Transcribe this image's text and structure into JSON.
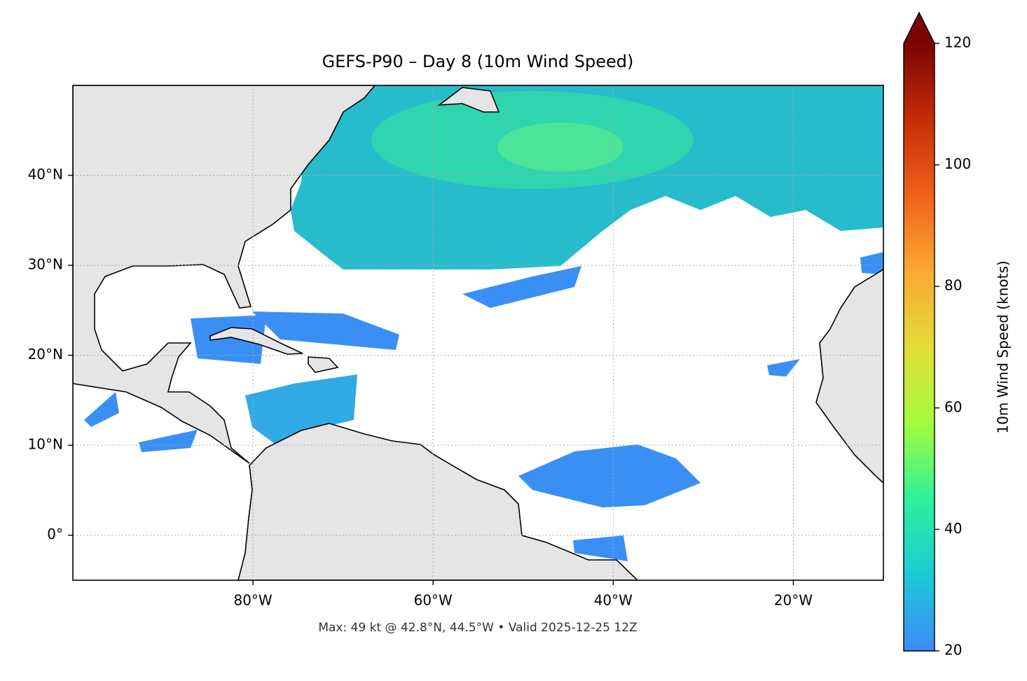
{
  "chart_data": {
    "type": "map",
    "title": "GEFS-P90 – Day 8 (10m Wind Speed)",
    "footer": "Max: 49 kt @ 42.8°N, 44.5°W • Valid 2025-12-25 12Z",
    "xlim": [
      -100,
      -10
    ],
    "ylim": [
      -5,
      50
    ],
    "xticks": [
      {
        "value": -80,
        "label": "80°W"
      },
      {
        "value": -60,
        "label": "60°W"
      },
      {
        "value": -40,
        "label": "40°W"
      },
      {
        "value": -20,
        "label": "20°W"
      }
    ],
    "yticks": [
      {
        "value": 0,
        "label": "0°"
      },
      {
        "value": 10,
        "label": "10°N"
      },
      {
        "value": 20,
        "label": "20°N"
      },
      {
        "value": 30,
        "label": "30°N"
      },
      {
        "value": 40,
        "label": "40°N"
      }
    ],
    "grid": true,
    "colorbar": {
      "label": "10m Wind Speed (knots)",
      "lim": [
        20,
        120
      ],
      "ticks": [
        20,
        40,
        60,
        80,
        100,
        120
      ],
      "colormap": [
        "#3e8af8",
        "#1ccbd6",
        "#2ef19a",
        "#a4fc3c",
        "#e2dc37",
        "#fca833",
        "#f0621a",
        "#c52c08",
        "#7a0403"
      ]
    }
  }
}
